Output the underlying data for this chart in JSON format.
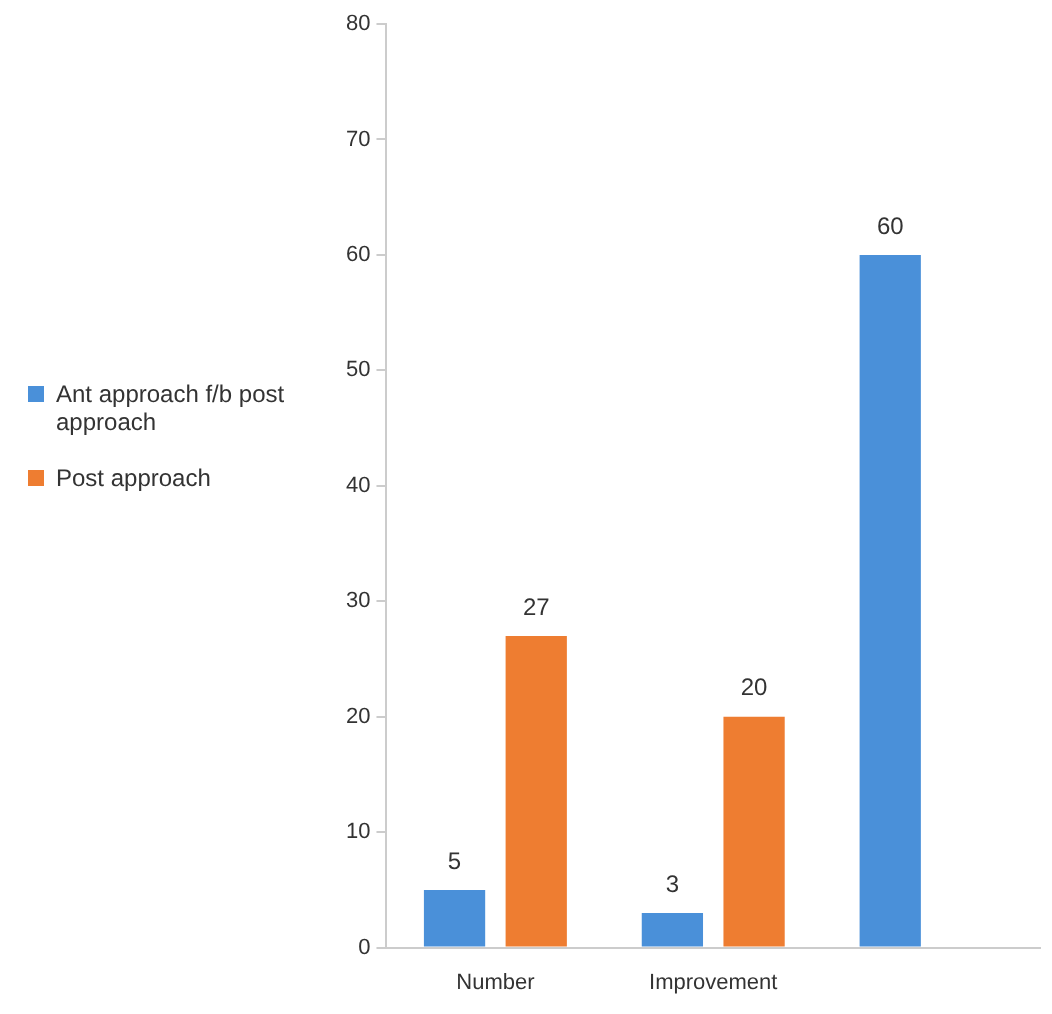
{
  "chart_data": {
    "type": "bar",
    "categories": [
      "Number",
      "Improvement",
      null
    ],
    "series": [
      {
        "name": "Ant approach f/b post approach",
        "color": "#4a90d9",
        "values": [
          5,
          3,
          60
        ]
      },
      {
        "name": "Post approach",
        "color": "#ee7d31",
        "values": [
          27,
          20,
          null
        ]
      }
    ],
    "ylim": [
      0,
      80
    ],
    "yticks": [
      0,
      10,
      20,
      30,
      40,
      50,
      60,
      70,
      80
    ],
    "grid": false,
    "legend": "left",
    "data_labels": true
  }
}
